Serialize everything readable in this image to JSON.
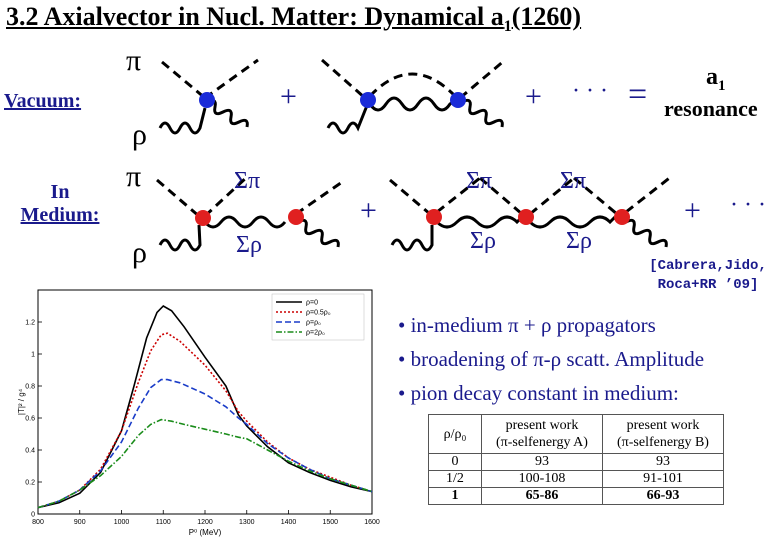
{
  "title_main": "3.2 Axialvector in Nucl. Matter: Dynamical a",
  "title_sub": "1",
  "title_tail": "(1260)",
  "row_labels": {
    "vacuum": "Vacuum:",
    "in_medium_line1": "In",
    "in_medium_line2": "Medium:"
  },
  "symbols": {
    "pi": "π",
    "rho": "ρ",
    "plus": "+",
    "dots": "· · ·",
    "equals": "=",
    "sigma_pi": "Σπ",
    "sigma_rho": "Σρ",
    "a1": "a",
    "a1_sub": "1",
    "resonance": "resonance"
  },
  "citation": {
    "line1": "[Cabrera,Jido,",
    "line2": "Roca+RR ’09]"
  },
  "bullets": [
    "• in-medium π + ρ propagators",
    "• broadening of π-ρ scatt. Amplitude",
    "• pion decay constant in medium:"
  ],
  "table": {
    "header": [
      "ρ/ρ₀",
      "present work\n(π-selfenergy A)",
      "present work\n(π-selfenergy B)"
    ],
    "rows": [
      [
        "0",
        "93",
        "93"
      ],
      [
        "1/2",
        "100-108",
        "91-101"
      ],
      [
        "1",
        "65-86",
        "66-93"
      ]
    ]
  },
  "chart_data": {
    "type": "line",
    "xlabel": "P⁰ (MeV)",
    "ylabel": "|T|² / g⁴",
    "xlim": [
      800,
      1600
    ],
    "ylim": [
      0,
      1.4
    ],
    "xticks": [
      "800",
      "900",
      "1000",
      "1100",
      "1200",
      "1300",
      "1400",
      "1500",
      "1600"
    ],
    "yticks": [
      "0",
      "0.2",
      "0.4",
      "0.6",
      "0.8",
      "1",
      "1.2"
    ],
    "legend_position": "top-right",
    "series": [
      {
        "name": "ρ=0",
        "color": "#000000",
        "dash": "solid",
        "points": [
          [
            800,
            0.04
          ],
          [
            850,
            0.07
          ],
          [
            900,
            0.13
          ],
          [
            950,
            0.26
          ],
          [
            1000,
            0.52
          ],
          [
            1030,
            0.8
          ],
          [
            1060,
            1.1
          ],
          [
            1085,
            1.26
          ],
          [
            1100,
            1.3
          ],
          [
            1120,
            1.27
          ],
          [
            1150,
            1.17
          ],
          [
            1200,
            0.98
          ],
          [
            1250,
            0.8
          ],
          [
            1280,
            0.62
          ],
          [
            1300,
            0.55
          ],
          [
            1350,
            0.42
          ],
          [
            1400,
            0.32
          ],
          [
            1450,
            0.26
          ],
          [
            1500,
            0.21
          ],
          [
            1550,
            0.17
          ],
          [
            1600,
            0.14
          ]
        ]
      },
      {
        "name": "ρ=0.5ρ₀",
        "color": "#cc0000",
        "dash": "dotted",
        "points": [
          [
            800,
            0.04
          ],
          [
            850,
            0.08
          ],
          [
            900,
            0.15
          ],
          [
            950,
            0.28
          ],
          [
            1000,
            0.52
          ],
          [
            1040,
            0.82
          ],
          [
            1070,
            1.02
          ],
          [
            1095,
            1.12
          ],
          [
            1110,
            1.13
          ],
          [
            1140,
            1.08
          ],
          [
            1200,
            0.93
          ],
          [
            1250,
            0.77
          ],
          [
            1280,
            0.64
          ],
          [
            1300,
            0.58
          ],
          [
            1350,
            0.45
          ],
          [
            1400,
            0.35
          ],
          [
            1450,
            0.28
          ],
          [
            1500,
            0.23
          ],
          [
            1550,
            0.18
          ],
          [
            1600,
            0.14
          ]
        ]
      },
      {
        "name": "ρ=ρ₀",
        "color": "#1a3cc8",
        "dash": "dashed",
        "points": [
          [
            800,
            0.04
          ],
          [
            850,
            0.08
          ],
          [
            900,
            0.15
          ],
          [
            950,
            0.27
          ],
          [
            1000,
            0.45
          ],
          [
            1040,
            0.66
          ],
          [
            1070,
            0.79
          ],
          [
            1095,
            0.84
          ],
          [
            1110,
            0.84
          ],
          [
            1140,
            0.82
          ],
          [
            1200,
            0.75
          ],
          [
            1250,
            0.67
          ],
          [
            1280,
            0.6
          ],
          [
            1300,
            0.56
          ],
          [
            1350,
            0.44
          ],
          [
            1400,
            0.35
          ],
          [
            1450,
            0.28
          ],
          [
            1500,
            0.22
          ],
          [
            1550,
            0.18
          ],
          [
            1600,
            0.14
          ]
        ]
      },
      {
        "name": "ρ=2ρ₀",
        "color": "#1a8c1a",
        "dash": "dashdot",
        "points": [
          [
            800,
            0.04
          ],
          [
            850,
            0.08
          ],
          [
            900,
            0.15
          ],
          [
            950,
            0.24
          ],
          [
            1000,
            0.36
          ],
          [
            1040,
            0.49
          ],
          [
            1070,
            0.56
          ],
          [
            1095,
            0.59
          ],
          [
            1120,
            0.58
          ],
          [
            1150,
            0.56
          ],
          [
            1200,
            0.53
          ],
          [
            1250,
            0.5
          ],
          [
            1280,
            0.48
          ],
          [
            1300,
            0.47
          ],
          [
            1350,
            0.4
          ],
          [
            1400,
            0.33
          ],
          [
            1450,
            0.27
          ],
          [
            1500,
            0.22
          ],
          [
            1550,
            0.18
          ],
          [
            1600,
            0.14
          ]
        ]
      }
    ]
  }
}
